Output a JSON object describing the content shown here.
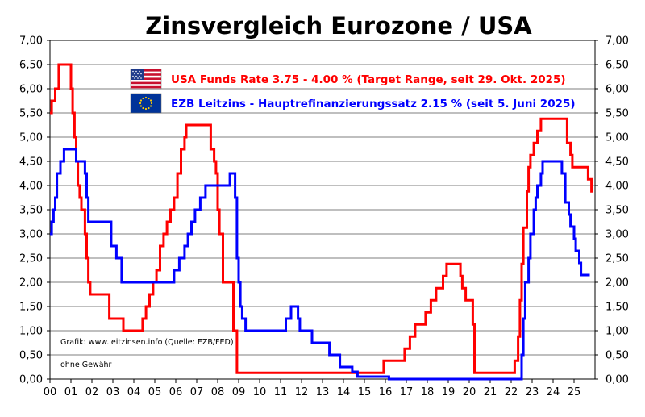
{
  "chart_data": {
    "type": "line",
    "title": "Zinsvergleich Eurozone / USA",
    "ylim": [
      0,
      7
    ],
    "yticks": [
      "0,00",
      "0,50",
      "1,00",
      "1,50",
      "2,00",
      "2,50",
      "3,00",
      "3,50",
      "4,00",
      "4,50",
      "5,00",
      "5,50",
      "6,00",
      "6,50",
      "7,00"
    ],
    "xlim": [
      2000,
      2026
    ],
    "xticks": [
      "00",
      "01",
      "02",
      "03",
      "04",
      "05",
      "06",
      "07",
      "08",
      "09",
      "10",
      "11",
      "12",
      "13",
      "14",
      "15",
      "16",
      "17",
      "18",
      "19",
      "20",
      "21",
      "22",
      "23",
      "24",
      "25"
    ],
    "grid": "horizontal",
    "legend_position": "top-center",
    "notes": [
      "Grafik: www.leitzinsen.info (Quelle: EZB/FED)",
      "ohne Gewähr"
    ],
    "series": [
      {
        "name": "USA Funds Rate 3.75 - 4.00 % (Target Range, seit 29. Okt. 2025)",
        "color": "#ff0000",
        "flag_icon": "usa-flag-icon",
        "x": [
          2000.0,
          2000.08,
          2000.25,
          2000.42,
          2001.0,
          2001.08,
          2001.17,
          2001.25,
          2001.33,
          2001.42,
          2001.5,
          2001.67,
          2001.75,
          2001.83,
          2001.92,
          2002.83,
          2003.5,
          2004.42,
          2004.58,
          2004.75,
          2004.92,
          2005.08,
          2005.25,
          2005.42,
          2005.58,
          2005.75,
          2005.92,
          2006.08,
          2006.25,
          2006.42,
          2006.5,
          2007.67,
          2007.83,
          2007.92,
          2008.0,
          2008.08,
          2008.25,
          2008.75,
          2008.92,
          2015.92,
          2016.92,
          2017.17,
          2017.42,
          2017.92,
          2018.17,
          2018.42,
          2018.75,
          2018.92,
          2019.58,
          2019.67,
          2019.83,
          2020.17,
          2020.25,
          2022.17,
          2022.33,
          2022.42,
          2022.5,
          2022.58,
          2022.75,
          2022.83,
          2022.92,
          2023.08,
          2023.25,
          2023.42,
          2023.58,
          2024.67,
          2024.83,
          2024.92,
          2025.67,
          2025.83
        ],
        "values": [
          5.5,
          5.75,
          6.0,
          6.5,
          6.0,
          5.5,
          5.0,
          4.5,
          4.0,
          3.75,
          3.5,
          3.0,
          2.5,
          2.0,
          1.75,
          1.25,
          1.0,
          1.25,
          1.5,
          1.75,
          2.0,
          2.25,
          2.75,
          3.0,
          3.25,
          3.5,
          3.75,
          4.25,
          4.75,
          5.0,
          5.25,
          4.75,
          4.5,
          4.25,
          3.5,
          3.0,
          2.0,
          1.0,
          0.13,
          0.38,
          0.63,
          0.88,
          1.13,
          1.38,
          1.63,
          1.88,
          2.13,
          2.38,
          2.13,
          1.88,
          1.63,
          1.13,
          0.13,
          0.38,
          0.88,
          1.63,
          2.38,
          3.13,
          3.88,
          4.38,
          4.63,
          4.88,
          5.13,
          5.38,
          5.38,
          4.88,
          4.63,
          4.38,
          4.13,
          3.88
        ]
      },
      {
        "name": "EZB Leitzins - Hauptrefinanzierungssatz  2.15 % (seit 5. Juni 2025)",
        "color": "#0000ff",
        "flag_icon": "eu-flag-icon",
        "x": [
          2000.0,
          2000.08,
          2000.17,
          2000.25,
          2000.33,
          2000.5,
          2000.67,
          2000.83,
          2001.0,
          2001.25,
          2001.42,
          2001.67,
          2001.75,
          2001.83,
          2002.0,
          2002.92,
          2003.17,
          2003.42,
          2005.92,
          2006.17,
          2006.42,
          2006.58,
          2006.75,
          2006.92,
          2007.17,
          2007.42,
          2008.0,
          2008.58,
          2008.83,
          2008.92,
          2009.0,
          2009.08,
          2009.17,
          2009.33,
          2009.5,
          2011.25,
          2011.5,
          2011.83,
          2011.92,
          2012.5,
          2013.33,
          2013.83,
          2014.42,
          2014.67,
          2015.0,
          2016.17,
          2022.5,
          2022.58,
          2022.67,
          2022.83,
          2022.92,
          2023.08,
          2023.17,
          2023.25,
          2023.42,
          2023.5,
          2023.67,
          2024.42,
          2024.58,
          2024.75,
          2024.83,
          2025.0,
          2025.08,
          2025.25,
          2025.33,
          2025.42,
          2025.67
        ],
        "values": [
          3.0,
          3.25,
          3.5,
          3.75,
          4.25,
          4.5,
          4.75,
          4.75,
          4.75,
          4.5,
          4.5,
          4.25,
          3.75,
          3.25,
          3.25,
          2.75,
          2.5,
          2.0,
          2.25,
          2.5,
          2.75,
          3.0,
          3.25,
          3.5,
          3.75,
          4.0,
          4.0,
          4.25,
          3.75,
          2.5,
          2.0,
          1.5,
          1.25,
          1.0,
          1.0,
          1.25,
          1.5,
          1.25,
          1.0,
          0.75,
          0.5,
          0.25,
          0.15,
          0.05,
          0.05,
          0.0,
          0.5,
          1.25,
          2.0,
          2.5,
          3.0,
          3.5,
          3.75,
          4.0,
          4.25,
          4.5,
          4.5,
          4.25,
          3.65,
          3.4,
          3.15,
          2.9,
          2.65,
          2.4,
          2.15,
          2.15,
          2.15
        ]
      }
    ]
  }
}
